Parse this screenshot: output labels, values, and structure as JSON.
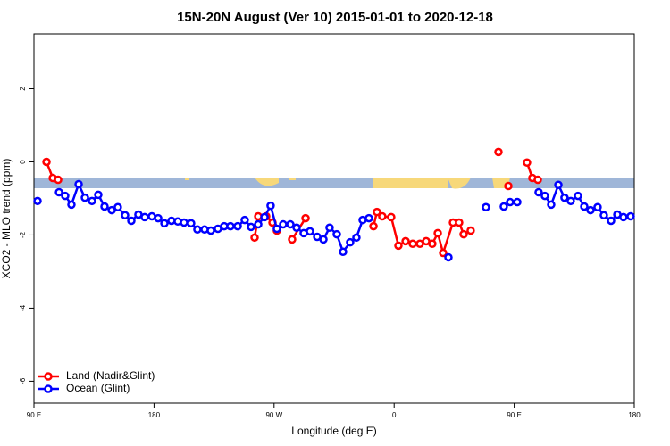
{
  "chart_data": {
    "type": "line",
    "title": "15N-20N August (Ver 10)   2015-01-01 to 2020-12-18",
    "x_label": "Longitude (deg E)",
    "y_label": "XCO2 - MLO trend (ppm)",
    "xlim": [
      90,
      540
    ],
    "ylim": [
      -6.6,
      3.5
    ],
    "xticks": [
      {
        "value": 90,
        "label": "90 E"
      },
      180,
      {
        "value": 270,
        "label": "90 W"
      },
      {
        "value": 360,
        "label": "0"
      },
      {
        "value": 450,
        "label": "90 E"
      },
      {
        "value": 540,
        "label": "180"
      }
    ],
    "yticks": [
      2,
      0,
      -2,
      -4,
      -6
    ],
    "legend": "bottom-left",
    "series": [
      {
        "name": "Land (Nadir&Glint)",
        "color": "#ff0000",
        "x": [
          99.4,
          104.1,
          108.1,
          null,
          255.4,
          258.1,
          264.1,
          268.8,
          272.1,
          null,
          283.5,
          293.6,
          null,
          344.5,
          347.1,
          351.1,
          357.8,
          363.2,
          368.6,
          373.9,
          379.3,
          384.0,
          388.6,
          392.7,
          396.7,
          404.1,
          408.7,
          412.1,
          417.4,
          null,
          438.2,
          null,
          445.6,
          null,
          459.6,
          463.6,
          467.7
        ],
        "values": [
          0.0,
          -0.44,
          -0.49,
          null,
          -2.07,
          -1.49,
          -1.49,
          -1.66,
          -1.88,
          null,
          -2.12,
          -1.54,
          null,
          -1.76,
          -1.37,
          -1.49,
          -1.51,
          -2.29,
          -2.17,
          -2.24,
          -2.24,
          -2.17,
          -2.24,
          -1.95,
          -2.49,
          -1.66,
          -1.66,
          -1.98,
          -1.88,
          null,
          0.27,
          null,
          -0.66,
          null,
          -0.02,
          -0.44,
          -0.49
        ]
      },
      {
        "name": "Ocean (Glint)",
        "color": "#0000ff",
        "x": [
          92.7,
          null,
          108.8,
          113.4,
          118.1,
          123.5,
          128.2,
          133.5,
          138.2,
          142.9,
          148.3,
          152.9,
          158.3,
          163.0,
          168.3,
          173.0,
          178.4,
          183.1,
          187.8,
          193.1,
          197.8,
          202.5,
          207.8,
          212.5,
          217.9,
          222.6,
          227.9,
          232.6,
          237.3,
          242.7,
          248.0,
          252.7,
          258.1,
          262.8,
          267.4,
          272.1,
          276.8,
          282.2,
          286.9,
          292.2,
          296.9,
          302.3,
          307.0,
          311.6,
          317.0,
          321.7,
          327.0,
          331.7,
          336.4,
          341.1,
          null,
          400.7,
          null,
          428.8,
          null,
          442.2,
          446.9,
          452.3,
          null,
          468.3,
          473.0,
          477.7,
          483.1,
          487.7,
          492.4,
          497.8,
          502.5,
          507.2,
          512.5,
          517.2,
          522.6,
          527.3,
          531.9,
          537.3
        ],
        "values": [
          -1.07,
          null,
          -0.83,
          -0.93,
          -1.17,
          -0.61,
          -0.98,
          -1.07,
          -0.9,
          -1.22,
          -1.32,
          -1.24,
          -1.46,
          -1.61,
          -1.44,
          -1.51,
          -1.49,
          -1.54,
          -1.68,
          -1.61,
          -1.63,
          -1.66,
          -1.68,
          -1.85,
          -1.85,
          -1.88,
          -1.83,
          -1.76,
          -1.76,
          -1.76,
          -1.59,
          -1.78,
          -1.71,
          -1.51,
          -1.2,
          -1.83,
          -1.71,
          -1.71,
          -1.8,
          -1.95,
          -1.9,
          -2.05,
          -2.12,
          -1.8,
          -1.98,
          -2.46,
          -2.2,
          -2.07,
          -1.59,
          -1.54,
          null,
          -2.61,
          null,
          -1.24,
          null,
          -1.22,
          -1.1,
          -1.1,
          null,
          -0.83,
          -0.93,
          -1.17,
          -0.63,
          -0.98,
          -1.07,
          -0.93,
          -1.22,
          -1.32,
          -1.24,
          -1.46,
          -1.61,
          -1.44,
          -1.51,
          -1.49
        ]
      }
    ]
  }
}
